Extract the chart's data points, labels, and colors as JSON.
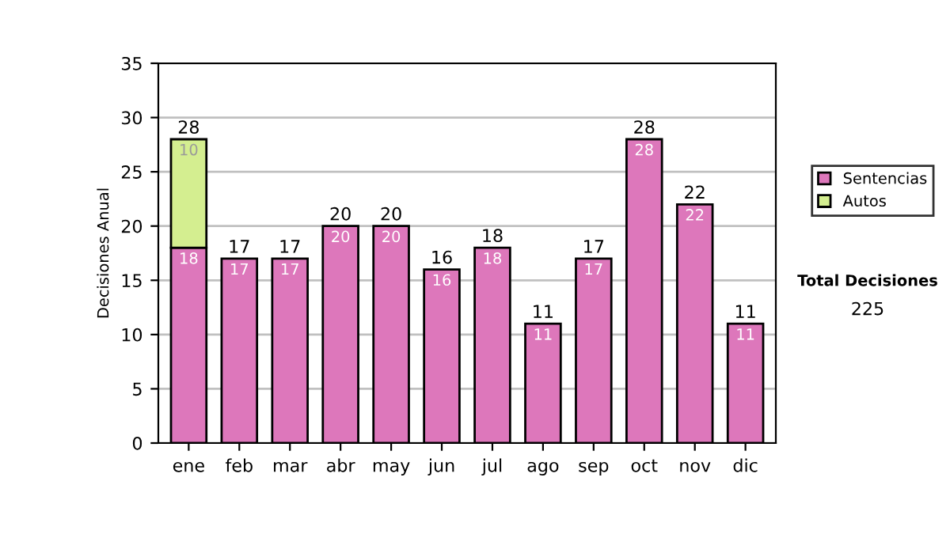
{
  "chart_data": {
    "type": "bar",
    "stacked": true,
    "ylabel": "Decisiones Anual",
    "categories": [
      "ene",
      "feb",
      "mar",
      "abr",
      "may",
      "jun",
      "jul",
      "ago",
      "sep",
      "oct",
      "nov",
      "dic"
    ],
    "series": [
      {
        "name": "Sentencias",
        "color": "#dd77bb",
        "values": [
          18,
          17,
          17,
          20,
          20,
          16,
          18,
          11,
          17,
          28,
          22,
          11
        ],
        "value_labels": [
          "18",
          "17",
          "17",
          "20",
          "20",
          "16",
          "18",
          "11",
          "17",
          "28",
          "22",
          "11"
        ]
      },
      {
        "name": "Autos",
        "color": "#d4ee90",
        "values": [
          10,
          null,
          null,
          null,
          null,
          null,
          null,
          null,
          null,
          null,
          null,
          null
        ],
        "value_labels": [
          "10",
          null,
          null,
          null,
          null,
          null,
          null,
          null,
          null,
          null,
          null,
          null
        ]
      }
    ],
    "totals": [
      "28",
      "17",
      "17",
      "20",
      "20",
      "16",
      "18",
      "11",
      "17",
      "28",
      "22",
      "11"
    ],
    "ylim": [
      0,
      35
    ],
    "yticks": [
      0,
      5,
      10,
      15,
      20,
      25,
      30,
      35
    ],
    "grid": "y",
    "legend": "right",
    "annotations": [
      "Total Decisiones",
      "225"
    ]
  }
}
